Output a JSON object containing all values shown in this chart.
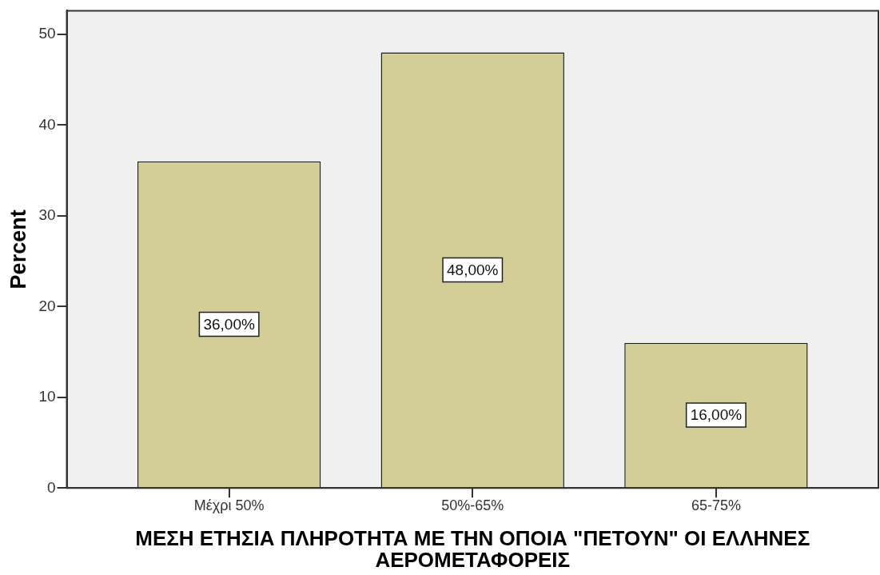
{
  "chart_data": {
    "type": "bar",
    "xlabel": "ΜΕΣΗ ΕΤΗΣΙΑ ΠΛΗΡΟΤΗΤΑ ΜΕ ΤΗΝ ΟΠΟΙΑ \"ΠΕΤΟΥΝ\" ΟΙ ΕΛΛΗΝΕΣ ΑΕΡΟΜΕΤΑΦΟΡΕΙΣ",
    "ylabel": "Percent",
    "categories": [
      "Μέχρι 50%",
      "50%-65%",
      "65-75%"
    ],
    "values": [
      36,
      48,
      16
    ],
    "value_labels": [
      "36,00%",
      "48,00%",
      "16,00%"
    ],
    "color": "#d3ce98",
    "ylim": [
      0,
      52.6
    ],
    "yticks": [
      0,
      10,
      20,
      30,
      40,
      50
    ]
  }
}
